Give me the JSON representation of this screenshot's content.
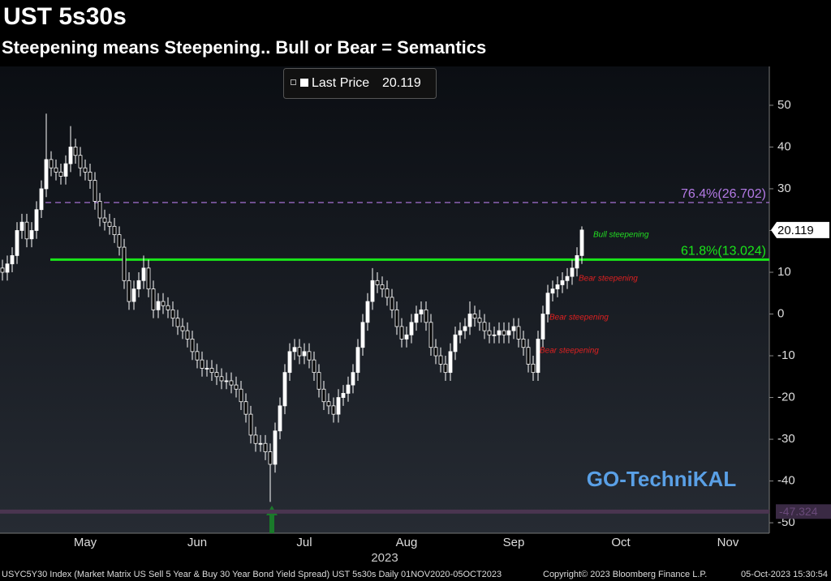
{
  "chart_data": {
    "type": "candlestick",
    "title": "UST 5s30s",
    "subtitle": "Steepening means Steepening.. Bull or Bear = Semantics",
    "year_label": "2023",
    "watermark": "GO-TechniKAL",
    "footer": {
      "description": "USYC5Y30 Index (Market Matrix US Sell 5 Year & Buy 30 Year Bond Yield Spread) UST 5s30s  Daily 01NOV2020-05OCT2023",
      "copyright": "Copyright© 2023 Bloomberg Finance L.P.",
      "timestamp": "05-Oct-2023 15:30:54"
    },
    "categories": [
      null,
      null,
      null,
      null,
      null,
      null,
      null,
      null,
      null,
      null,
      null,
      null,
      null,
      null,
      null,
      null,
      null,
      "May",
      null,
      null,
      null,
      null,
      null,
      null,
      null,
      null,
      null,
      null,
      null,
      null,
      null,
      null,
      null,
      null,
      null,
      null,
      null,
      null,
      null,
      null,
      "Jun",
      null,
      null,
      null,
      null,
      null,
      null,
      null,
      null,
      null,
      null,
      null,
      null,
      null,
      null,
      null,
      null,
      null,
      null,
      null,
      null,
      null,
      "Jul",
      null,
      null,
      null,
      null,
      null,
      null,
      null,
      null,
      null,
      null,
      null,
      null,
      null,
      null,
      null,
      null,
      null,
      null,
      null,
      null,
      "Aug",
      null,
      null,
      null,
      null,
      null,
      null,
      null,
      null,
      null,
      null,
      null,
      null,
      null,
      null,
      null,
      null,
      null,
      null,
      null,
      null,
      null,
      "Sep",
      null,
      null,
      null,
      null,
      null,
      null,
      null,
      null,
      null,
      null,
      null,
      null,
      null,
      null,
      null,
      null,
      null,
      null,
      null,
      null,
      null,
      "Oct",
      null,
      null,
      null,
      null,
      null,
      null,
      null,
      null,
      null,
      null,
      null,
      null,
      null,
      null,
      null,
      null,
      null,
      null,
      null,
      null,
      null,
      "Nov",
      null,
      null,
      null,
      null,
      null,
      null,
      null,
      null
    ],
    "series": [
      {
        "name": "Last Price",
        "color": "#ffffff",
        "open": [
          11,
          10,
          12,
          14,
          20,
          22,
          18,
          20,
          25,
          30,
          37,
          35,
          34,
          33,
          36,
          40,
          38,
          35,
          34,
          32,
          27,
          23,
          22,
          21,
          19,
          16,
          8,
          3,
          6,
          8,
          11,
          6,
          1,
          3,
          2,
          1,
          -1,
          -3,
          -4,
          -6,
          -9,
          -11,
          -13,
          -13,
          -14,
          -15,
          -16,
          -16,
          -17,
          -18,
          -21,
          -24,
          -29,
          -31,
          -31,
          -33,
          -36,
          -28,
          -22,
          -14,
          -9,
          -8,
          -10,
          -9,
          -11,
          -14,
          -18,
          -21,
          -22,
          -24,
          -20,
          -19,
          -17,
          -14,
          -8,
          -2,
          3,
          8,
          7,
          6,
          4,
          1,
          -3,
          -6,
          -5,
          -2,
          0,
          1,
          -2,
          -8,
          -10,
          -12,
          -14,
          -9,
          -5,
          -4,
          -3,
          0,
          -1,
          -2,
          -4,
          -5,
          -5,
          -4,
          -5,
          -4,
          -3,
          -6,
          -8,
          -12,
          -14,
          -6,
          0,
          5,
          6,
          7,
          8,
          9,
          11,
          14,
          null,
          null,
          null,
          null,
          null,
          null,
          null,
          null,
          null,
          null,
          null,
          null,
          null,
          null,
          null,
          null,
          null,
          null,
          null,
          null,
          null,
          null,
          null,
          null,
          null,
          null,
          null,
          null,
          null,
          null,
          null,
          null,
          null,
          null,
          null,
          null,
          null,
          null
        ],
        "high": [
          13,
          14,
          16,
          22,
          24,
          24,
          22,
          27,
          32,
          48,
          39,
          37,
          36,
          38,
          45,
          42,
          40,
          37,
          36,
          34,
          29,
          25,
          24,
          23,
          21,
          18,
          10,
          8,
          10,
          14,
          13,
          8,
          5,
          5,
          4,
          3,
          1,
          -1,
          -2,
          -4,
          -7,
          -9,
          -11,
          -11,
          -12,
          -13,
          -14,
          -14,
          -15,
          -16,
          -19,
          -22,
          -27,
          -29,
          -29,
          -31,
          -26,
          -20,
          -12,
          -7,
          -6,
          -6,
          -7,
          -7,
          -9,
          -12,
          -16,
          -19,
          -20,
          -18,
          -17,
          -15,
          -12,
          -6,
          0,
          5,
          11,
          10,
          9,
          8,
          6,
          3,
          -1,
          -3,
          0,
          2,
          3,
          3,
          0,
          -6,
          -8,
          -10,
          -7,
          -3,
          -2,
          -1,
          3,
          2,
          1,
          0,
          -2,
          -3,
          -2,
          -2,
          -2,
          -1,
          -1,
          -4,
          -6,
          -10,
          -4,
          2,
          7,
          8,
          9,
          10,
          11,
          13,
          16,
          21,
          null,
          null,
          null,
          null,
          null,
          null,
          null,
          null,
          null,
          null,
          null,
          null,
          null,
          null,
          null,
          null,
          null,
          null,
          null,
          null,
          null,
          null,
          null,
          null,
          null,
          null,
          null,
          null,
          null,
          null,
          null,
          null,
          null,
          null,
          null,
          null,
          null,
          null
        ],
        "low": [
          8,
          8,
          10,
          12,
          18,
          16,
          16,
          18,
          23,
          28,
          33,
          32,
          31,
          31,
          34,
          36,
          33,
          32,
          30,
          25,
          21,
          20,
          19,
          17,
          14,
          6,
          1,
          1,
          4,
          6,
          4,
          -1,
          -1,
          0,
          -1,
          -3,
          -5,
          -6,
          -8,
          -11,
          -13,
          -15,
          -15,
          -16,
          -17,
          -18,
          -18,
          -19,
          -20,
          -23,
          -26,
          -31,
          -33,
          -33,
          -35,
          -45,
          -38,
          -30,
          -24,
          -16,
          -11,
          -12,
          -12,
          -13,
          -16,
          -20,
          -23,
          -24,
          -26,
          -26,
          -22,
          -21,
          -19,
          -16,
          -10,
          -4,
          1,
          5,
          4,
          2,
          -1,
          -5,
          -8,
          -8,
          -7,
          -4,
          -2,
          -4,
          -10,
          -12,
          -14,
          -16,
          -16,
          -11,
          -7,
          -6,
          -5,
          -3,
          -4,
          -6,
          -7,
          -7,
          -7,
          -7,
          -7,
          -6,
          -8,
          -10,
          -14,
          -16,
          -16,
          -8,
          -2,
          3,
          4,
          5,
          6,
          7,
          9,
          12,
          null,
          null,
          null,
          null,
          null,
          null,
          null,
          null,
          null,
          null,
          null,
          null,
          null,
          null,
          null,
          null,
          null,
          null,
          null,
          null,
          null,
          null,
          null,
          null,
          null,
          null,
          null,
          null,
          null,
          null,
          null,
          null,
          null,
          null,
          null,
          null,
          null,
          null
        ],
        "close": [
          10,
          12,
          14,
          20,
          22,
          18,
          20,
          25,
          30,
          37,
          35,
          34,
          33,
          36,
          40,
          38,
          35,
          34,
          32,
          27,
          23,
          22,
          21,
          19,
          16,
          8,
          3,
          6,
          8,
          11,
          6,
          1,
          3,
          2,
          1,
          -1,
          -3,
          -4,
          -6,
          -9,
          -11,
          -13,
          -13,
          -14,
          -15,
          -16,
          -16,
          -17,
          -18,
          -21,
          -24,
          -29,
          -31,
          -31,
          -33,
          -36,
          -28,
          -22,
          -14,
          -9,
          -8,
          -10,
          -9,
          -11,
          -14,
          -18,
          -21,
          -22,
          -24,
          -20,
          -19,
          -17,
          -14,
          -8,
          -2,
          3,
          8,
          7,
          6,
          4,
          1,
          -3,
          -6,
          -5,
          -2,
          0,
          1,
          -2,
          -8,
          -10,
          -12,
          -14,
          -9,
          -5,
          -4,
          -3,
          0,
          -1,
          -2,
          -4,
          -5,
          -5,
          -4,
          -5,
          -4,
          -3,
          -6,
          -8,
          -12,
          -14,
          -6,
          0,
          5,
          6,
          7,
          8,
          9,
          11,
          14,
          20.119,
          null,
          null,
          null,
          null,
          null,
          null,
          null,
          null,
          null,
          null,
          null,
          null,
          null,
          null,
          null,
          null,
          null,
          null,
          null,
          null,
          null,
          null,
          null,
          null,
          null,
          null,
          null,
          null,
          null,
          null,
          null,
          null,
          null,
          null,
          null,
          null,
          null,
          null
        ]
      }
    ],
    "levels": [
      {
        "value": 26.702,
        "label": "76.4%(26.702)",
        "color": "#b47ae6",
        "style": "dashed"
      },
      {
        "value": 13.024,
        "label": "61.8%(13.024)",
        "color": "#19e619",
        "style": "solid"
      },
      {
        "value": -47.324,
        "label": "-47.324",
        "color": "#4a3550",
        "style": "band"
      }
    ],
    "annotations": [
      {
        "text": "Bull steepening",
        "color": "#22dd22"
      },
      {
        "text": "Bear steepening",
        "color": "#e02020"
      },
      {
        "text": "Bear steepening",
        "color": "#e02020"
      },
      {
        "text": "Bear steepening",
        "color": "#e02020"
      }
    ],
    "ylim": [
      -52.5,
      59.3
    ],
    "yticks": [
      50,
      40,
      30,
      20,
      10,
      0,
      -10,
      -20,
      -30,
      -40,
      -50
    ],
    "grid": false
  }
}
